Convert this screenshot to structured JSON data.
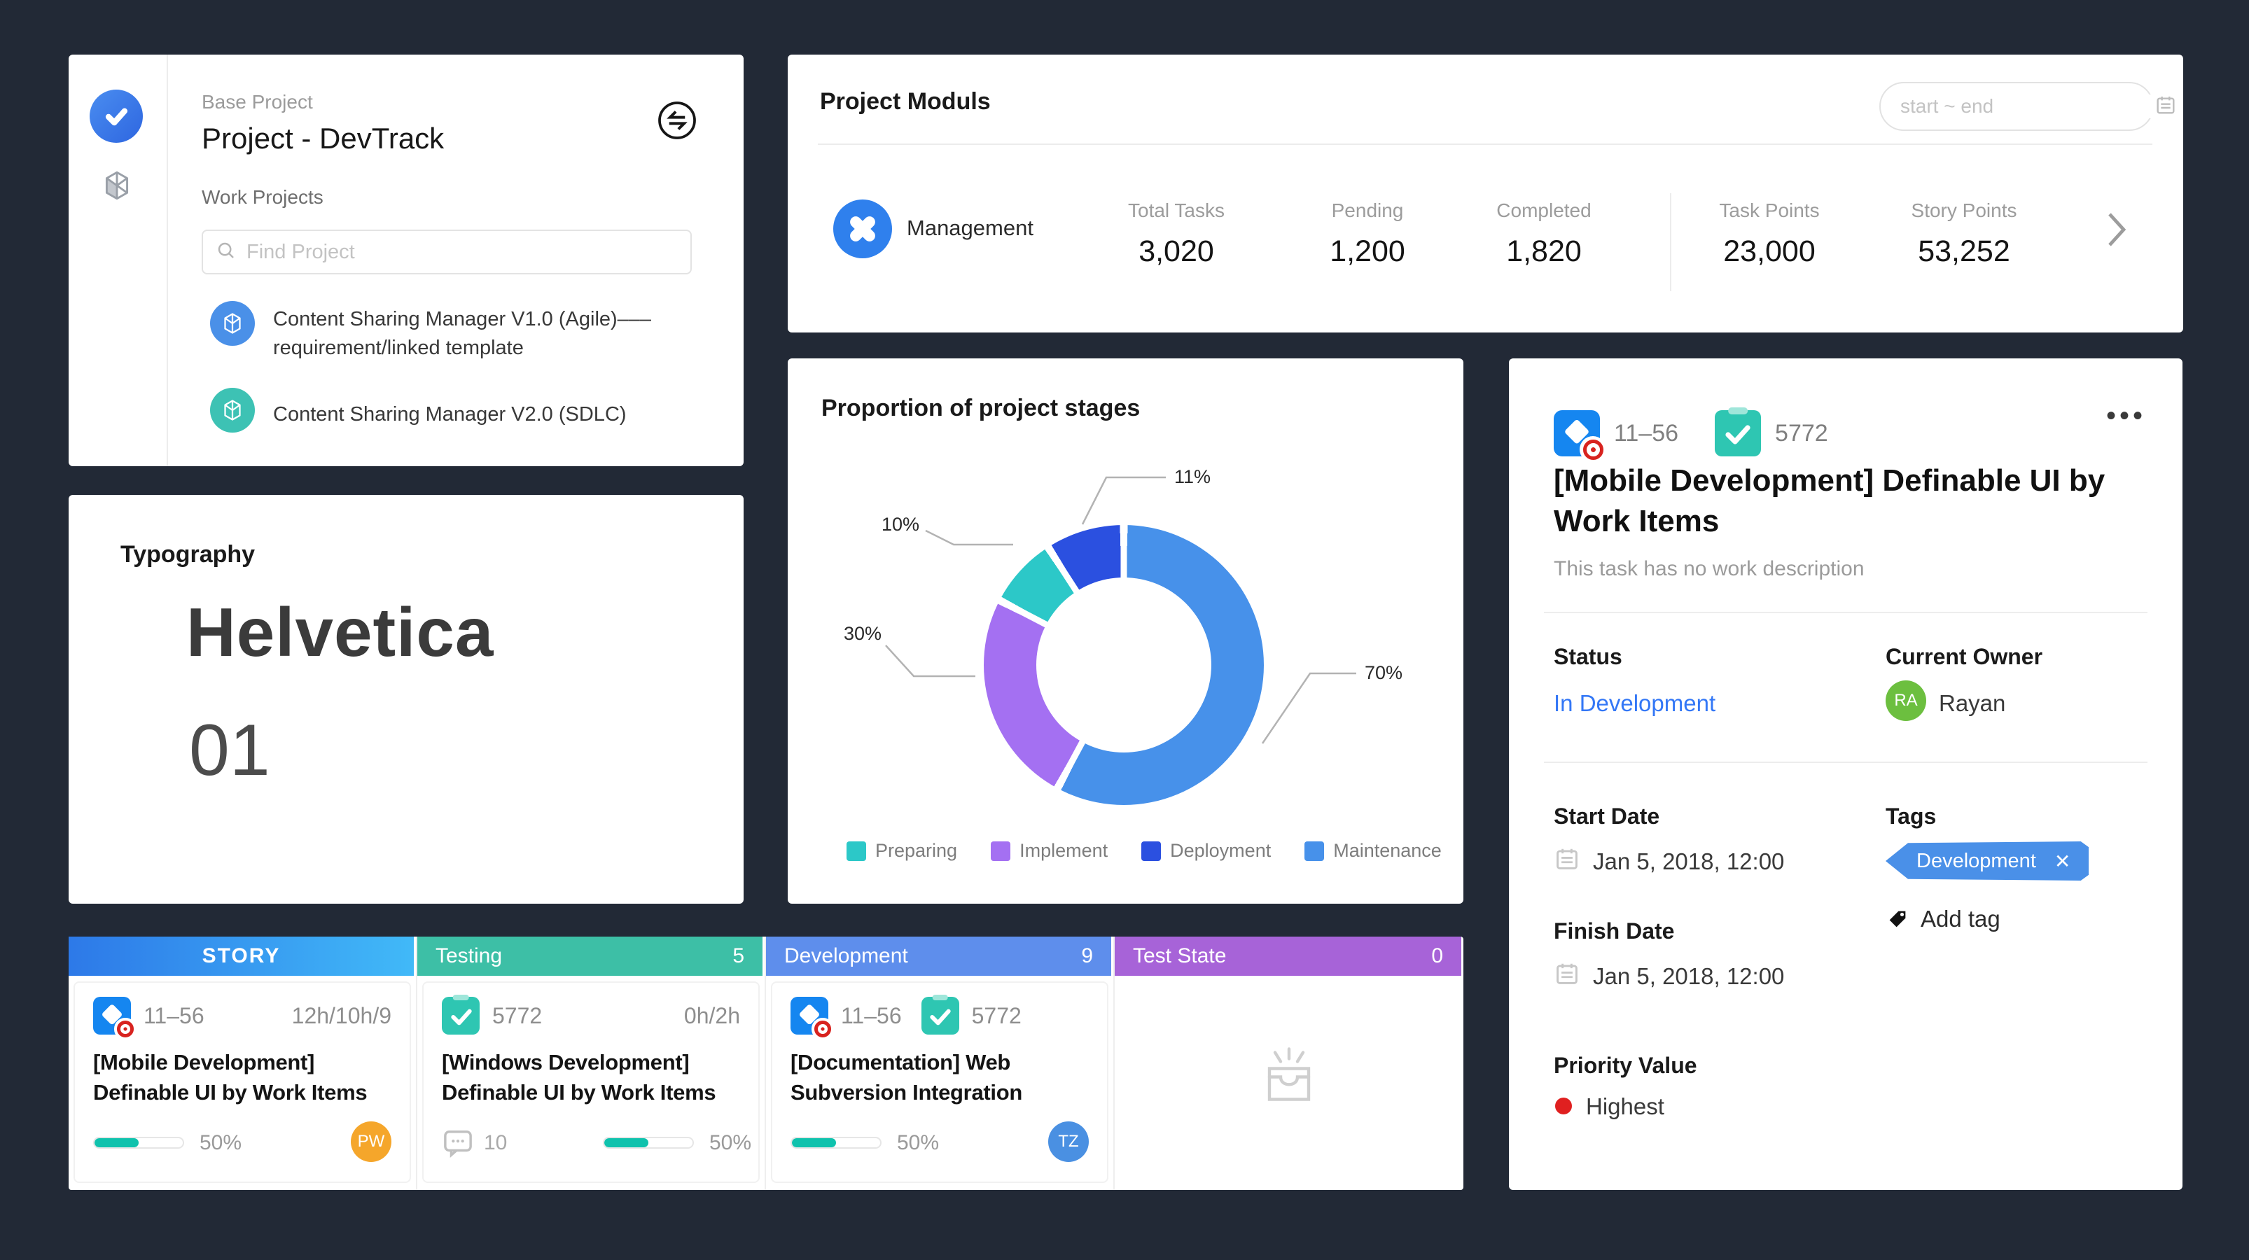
{
  "page": {
    "background": "#222936"
  },
  "project_panel": {
    "logo_icon": "check-logo",
    "base_project_label": "Base Project",
    "base_project_name": "Project - DevTrack",
    "work_projects_label": "Work Projects",
    "search_placeholder": "Find Project",
    "projects": [
      {
        "name": "Content Sharing Manager V1.0 (Agile)–––requirement/linked template",
        "color": "#4a90e8"
      },
      {
        "name": "Content Sharing Manager V2.0 (SDLC)",
        "color": "#3dc2b4"
      }
    ]
  },
  "typography_card": {
    "title": "Typography",
    "font_name": "Helvetica",
    "font_number": "01"
  },
  "project_moduls": {
    "title": "Project Moduls",
    "date_range_placeholder": "start ~ end",
    "row": {
      "name": "Management",
      "icon_color": "#2f80ed",
      "stats": [
        {
          "label": "Total Tasks",
          "value": "3,020"
        },
        {
          "label": "Pending",
          "value": "1,200"
        },
        {
          "label": "Completed",
          "value": "1,820"
        },
        {
          "label": "Task Points",
          "value": "23,000"
        },
        {
          "label": "Story Points",
          "value": "53,252"
        }
      ]
    }
  },
  "chart_data": {
    "type": "pie",
    "subtype": "donut",
    "title": "Proportion of project stages",
    "legend_position": "bottom",
    "segments": [
      {
        "label": "Preparing",
        "value": 10,
        "callout": "10%",
        "color": "#2cc8c8"
      },
      {
        "label": "Implement",
        "value": 30,
        "callout": "30%",
        "color": "#a470f2"
      },
      {
        "label": "Deployment",
        "value": 11,
        "callout": "11%",
        "color": "#2b50e0"
      },
      {
        "label": "Maintenance",
        "value": 70,
        "callout": "70%",
        "color": "#4791ea"
      }
    ],
    "clockwise_order_from_top": [
      "Maintenance",
      "Implement",
      "Preparing",
      "Deployment"
    ]
  },
  "task_detail": {
    "work_item_id": "11–56",
    "task_id": "5772",
    "more_label": "•••",
    "title": "[Mobile Development] Definable UI by Work Items",
    "description": "This task has no work description",
    "status_label": "Status",
    "status_value": "In Development",
    "status_color": "#3377f6",
    "owner_label": "Current Owner",
    "owner_name": "Rayan",
    "owner_initials": "RA",
    "owner_color": "#6cbf3f",
    "start_date_label": "Start Date",
    "start_date": "Jan 5, 2018, 12:00",
    "finish_date_label": "Finish Date",
    "finish_date": "Jan 5, 2018, 12:00",
    "tags_label": "Tags",
    "tag": {
      "text": "Development",
      "remove_label": "✕",
      "color": "#4a90e8"
    },
    "add_tag_label": "Add tag",
    "priority_label": "Priority Value",
    "priority_value": "Highest",
    "priority_color": "#e02020"
  },
  "kanban": {
    "progress_color": "#0fc2ad",
    "columns": [
      {
        "label": "STORY",
        "count": "",
        "bg": "linear-gradient(90deg,#2d79e8,#41b9f8)"
      },
      {
        "label": "Testing",
        "count": "5",
        "bg": "#3dbfa6"
      },
      {
        "label": "Development",
        "count": "9",
        "bg": "#5e8eec"
      },
      {
        "label": "Test State",
        "count": "0",
        "bg": "#a763d8"
      }
    ],
    "cards": [
      {
        "id": "11–56",
        "hours": "12h/10h/9",
        "title": "[Mobile Development] Definable UI by Work Items",
        "progress": "50%",
        "avatar": {
          "initials": "PW",
          "color": "#f5a62b"
        }
      },
      {
        "id": "5772",
        "hours": "0h/2h",
        "title": "[Windows Development] Definable UI by Work Items",
        "comments": "10",
        "progress": "50%"
      },
      {
        "id": "11–56",
        "id2": "5772",
        "title": "[Documentation] Web Subversion Integration",
        "progress": "50%",
        "avatar": {
          "initials": "TZ",
          "color": "#4a90e2"
        }
      }
    ]
  }
}
